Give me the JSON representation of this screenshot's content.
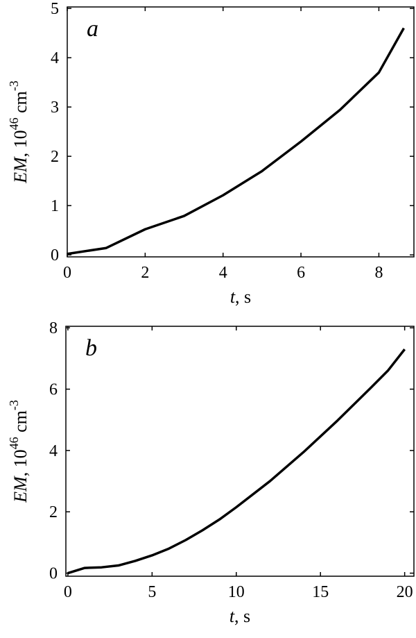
{
  "chart_data": [
    {
      "type": "line",
      "panel_label": "a",
      "xlabel_parts": [
        "t",
        ", s"
      ],
      "ylabel_parts": [
        "EM",
        ", 10",
        "46",
        " cm",
        "-3"
      ],
      "x": [
        0,
        1,
        2,
        3,
        4,
        5,
        6,
        7,
        8,
        8.64
      ],
      "series": [
        {
          "color": "#000000",
          "values": [
            0.02,
            0.14,
            0.52,
            0.79,
            1.21,
            1.7,
            2.3,
            2.94,
            3.7,
            4.6
          ]
        }
      ],
      "xlim": [
        0,
        8.9
      ],
      "ylim": [
        -0.04,
        5.03
      ],
      "xticks": [
        0,
        2,
        4,
        6,
        8
      ],
      "yticks": [
        0,
        1,
        2,
        3,
        4,
        5
      ]
    },
    {
      "type": "line",
      "panel_label": "b",
      "xlabel_parts": [
        "t",
        ", s"
      ],
      "ylabel_parts": [
        "EM",
        ", 10",
        "46",
        " cm",
        "-3"
      ],
      "x": [
        0,
        1,
        2,
        3,
        4,
        5,
        6,
        7,
        8,
        9,
        10,
        12,
        14,
        16,
        18,
        19,
        20
      ],
      "series": [
        {
          "color": "#000000",
          "values": [
            0,
            0.17,
            0.19,
            0.25,
            0.4,
            0.58,
            0.8,
            1.08,
            1.4,
            1.75,
            2.15,
            3.0,
            3.95,
            4.97,
            6.05,
            6.6,
            7.3
          ]
        }
      ],
      "xlim": [
        -0.12,
        20.55
      ],
      "ylim": [
        -0.1,
        8.05
      ],
      "xticks": [
        0,
        5,
        10,
        15,
        20
      ],
      "yticks": [
        0,
        2,
        4,
        6,
        8
      ]
    }
  ]
}
